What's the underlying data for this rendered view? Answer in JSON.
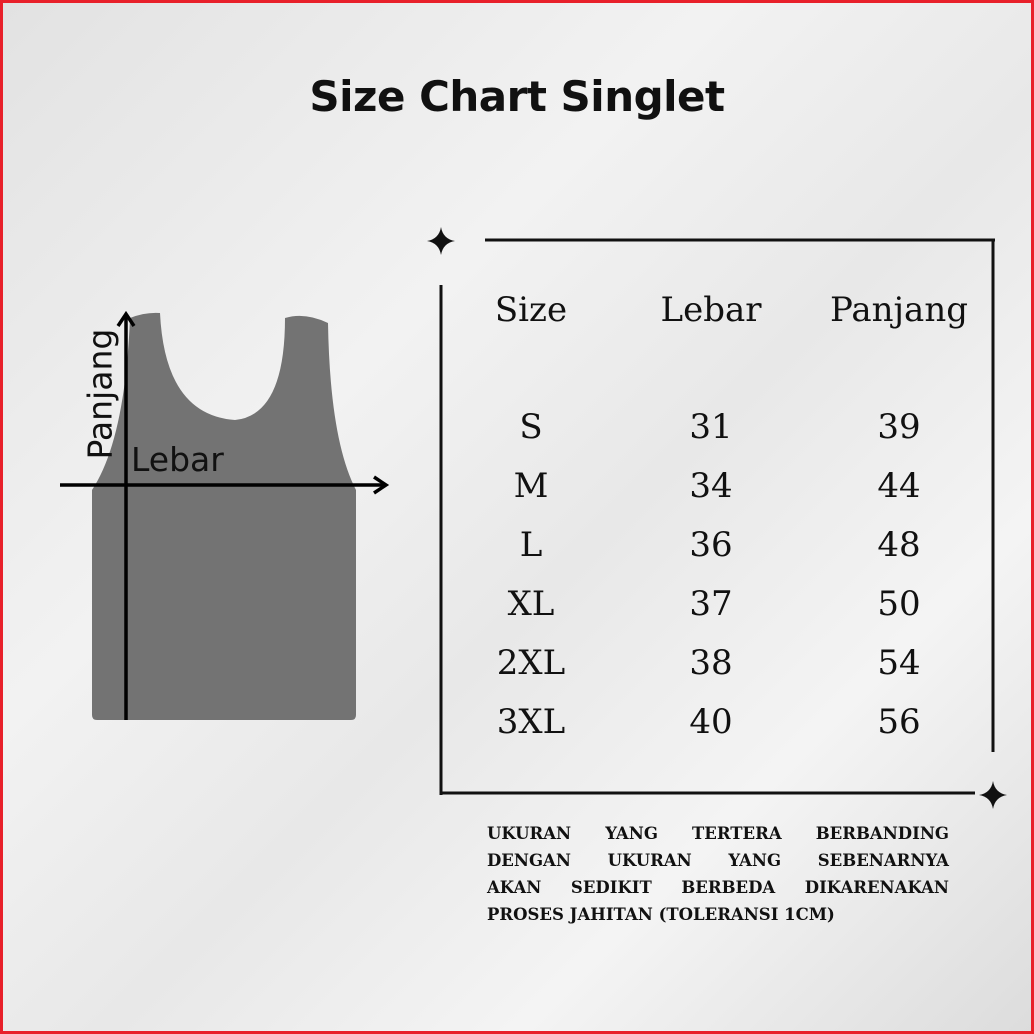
{
  "title": "Size Chart Singlet",
  "diagram": {
    "vertical_label": "Panjang",
    "horizontal_label": "Lebar",
    "garment_color": "#737373"
  },
  "table": {
    "headers": [
      "Size",
      "Lebar",
      "Panjang"
    ],
    "rows": [
      [
        "S",
        "31",
        "39"
      ],
      [
        "M",
        "34",
        "44"
      ],
      [
        "L",
        "36",
        "48"
      ],
      [
        "XL",
        "37",
        "50"
      ],
      [
        "2XL",
        "38",
        "54"
      ],
      [
        "3XL",
        "40",
        "56"
      ]
    ]
  },
  "note_lines": [
    "UKURAN YANG TERTERA BERBANDING",
    "DENGAN UKURAN YANG SEBENARNYA",
    "AKAN SEDIKIT BERBEDA DIKARENAKAN",
    "PROSES JAHITAN (TOLERANSI 1CM)"
  ],
  "colors": {
    "border": "#e8202a",
    "text": "#111111"
  }
}
